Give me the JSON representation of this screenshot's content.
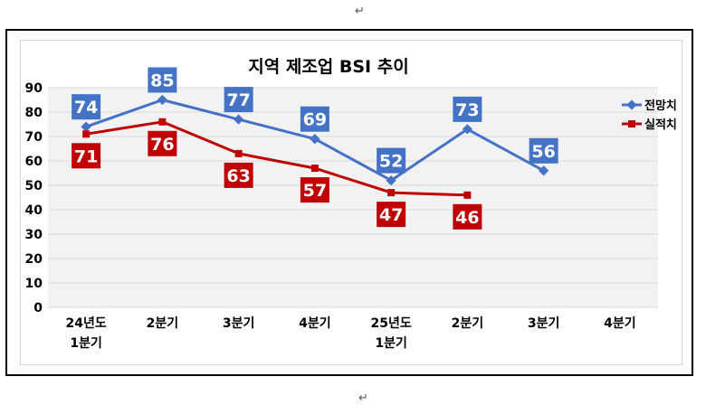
{
  "page": {
    "return_marks": [
      "↵",
      "↵"
    ]
  },
  "chart_data": {
    "type": "line",
    "title": "지역 제조업 BSI 추이",
    "categories": [
      [
        "24년도",
        "1분기"
      ],
      [
        "2분기"
      ],
      [
        "3분기"
      ],
      [
        "4분기"
      ],
      [
        "25년도",
        "1분기"
      ],
      [
        "2분기"
      ],
      [
        "3분기"
      ],
      [
        "4분기"
      ]
    ],
    "ylim": [
      0,
      90
    ],
    "yticks": [
      0,
      10,
      20,
      30,
      40,
      50,
      60,
      70,
      80,
      90
    ],
    "grid": true,
    "legend_position": "top-right",
    "series": [
      {
        "name": "전망치",
        "values": [
          74,
          85,
          77,
          69,
          52,
          73,
          56,
          null
        ],
        "color": "#4472C4",
        "label_bg": "#4472C4",
        "marker": "diamond"
      },
      {
        "name": "실적치",
        "values": [
          71,
          76,
          63,
          57,
          47,
          46,
          null,
          null
        ],
        "color": "#C00000",
        "label_bg": "#C00000",
        "marker": "square"
      }
    ]
  }
}
